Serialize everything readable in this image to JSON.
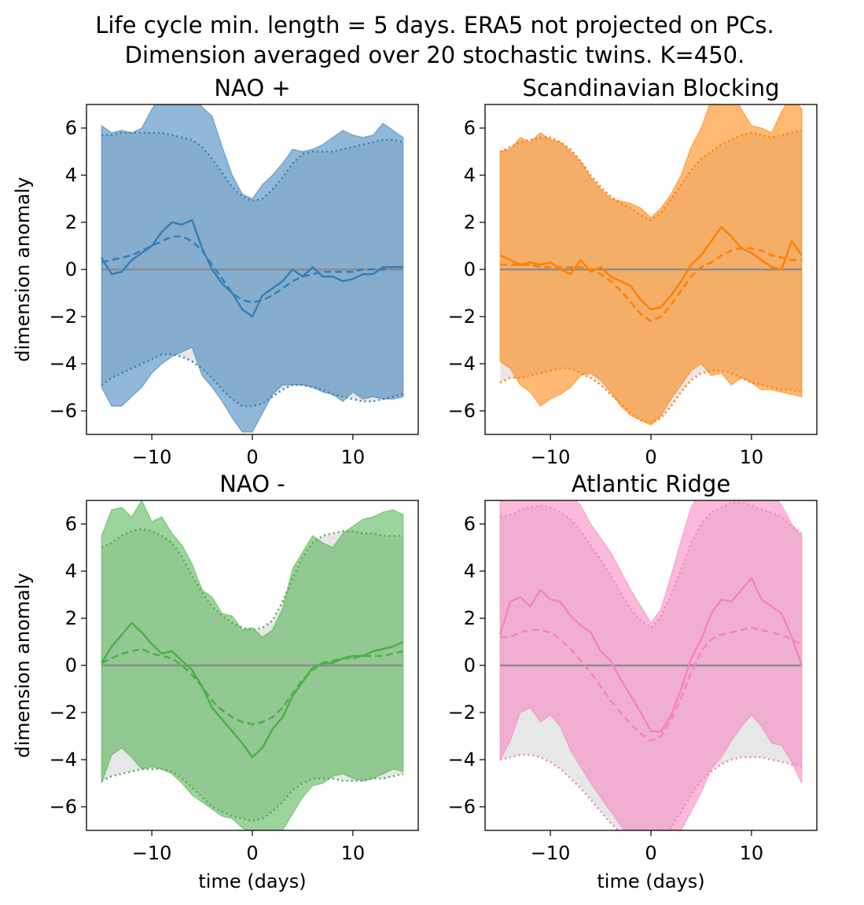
{
  "figure": {
    "suptitle_lines": [
      "Life cycle min. length = 5 days. ERA5 not projected on PCs.",
      "Dimension averaged over 20 stochastic twins. K=450."
    ]
  },
  "chart_data": [
    {
      "type": "line",
      "title": "NAO +",
      "color": "#377eb8",
      "xlabel": "",
      "ylabel": "dimension anomaly",
      "xlim": [
        -16.5,
        16.5
      ],
      "ylim": [
        -7,
        7
      ],
      "xticks": [
        -10,
        0,
        10
      ],
      "yticks": [
        -6,
        -4,
        -2,
        0,
        2,
        4,
        6
      ],
      "x": [
        -15,
        -14,
        -13,
        -12,
        -11,
        -10,
        -9,
        -8,
        -7,
        -6,
        -5,
        -4,
        -3,
        -2,
        -1,
        0,
        1,
        2,
        3,
        4,
        5,
        6,
        7,
        8,
        9,
        10,
        11,
        12,
        13,
        14,
        15
      ],
      "series": [
        {
          "role": "solid",
          "values": [
            0.5,
            -0.2,
            -0.1,
            0.4,
            0.7,
            1.0,
            1.6,
            2.0,
            1.9,
            2.1,
            0.9,
            0.0,
            -0.6,
            -1.0,
            -1.7,
            -2.0,
            -1.1,
            -0.8,
            -0.5,
            0.0,
            -0.3,
            0.1,
            -0.3,
            -0.3,
            -0.5,
            -0.4,
            -0.2,
            -0.2,
            0.1,
            0.1,
            0.1
          ]
        },
        {
          "role": "dashed",
          "values": [
            0.3,
            0.4,
            0.5,
            0.6,
            0.8,
            1.0,
            1.2,
            1.4,
            1.4,
            1.2,
            0.8,
            0.2,
            -0.4,
            -1.0,
            -1.3,
            -1.4,
            -1.3,
            -1.1,
            -0.8,
            -0.5,
            -0.3,
            -0.2,
            -0.1,
            -0.1,
            -0.1,
            -0.1,
            0.0,
            0.0,
            0.0,
            0.1,
            0.1
          ]
        },
        {
          "role": "ensemble_upper",
          "values": [
            6.1,
            5.8,
            5.9,
            5.8,
            6.0,
            6.8,
            7.4,
            7.3,
            7.0,
            7.4,
            6.9,
            6.5,
            5.2,
            4.0,
            3.2,
            3.0,
            3.6,
            4.0,
            4.5,
            5.1,
            5.0,
            5.1,
            5.3,
            5.6,
            5.9,
            5.7,
            5.6,
            5.7,
            6.2,
            5.9,
            5.6
          ]
        },
        {
          "role": "ensemble_lower",
          "values": [
            -5.0,
            -5.8,
            -5.8,
            -5.4,
            -5.0,
            -4.4,
            -4.0,
            -3.7,
            -3.5,
            -3.3,
            -4.5,
            -5.0,
            -5.6,
            -6.3,
            -6.9,
            -6.9,
            -6.1,
            -5.3,
            -4.9,
            -4.9,
            -4.9,
            -5.0,
            -5.2,
            -5.3,
            -5.6,
            -5.2,
            -5.5,
            -5.4,
            -5.5,
            -5.5,
            -5.4
          ]
        },
        {
          "role": "era5_upper",
          "values": [
            5.7,
            5.7,
            5.8,
            5.8,
            5.8,
            5.8,
            5.8,
            5.7,
            5.6,
            5.5,
            5.2,
            4.7,
            4.1,
            3.5,
            3.1,
            2.9,
            3.0,
            3.4,
            3.9,
            4.5,
            4.9,
            5.0,
            5.0,
            5.0,
            5.1,
            5.2,
            5.3,
            5.4,
            5.5,
            5.5,
            5.4
          ]
        },
        {
          "role": "era5_lower",
          "values": [
            -4.9,
            -4.6,
            -4.4,
            -4.2,
            -4.0,
            -3.8,
            -3.6,
            -3.6,
            -3.7,
            -3.9,
            -4.2,
            -4.6,
            -5.1,
            -5.5,
            -5.8,
            -5.8,
            -5.7,
            -5.4,
            -5.1,
            -4.9,
            -4.9,
            -5.0,
            -5.1,
            -5.3,
            -5.4,
            -5.5,
            -5.6,
            -5.6,
            -5.5,
            -5.4,
            -5.3
          ]
        }
      ]
    },
    {
      "type": "line",
      "title": "Scandinavian Blocking",
      "color": "#ff7f00",
      "xlabel": "",
      "ylabel": "",
      "xlim": [
        -16.5,
        16.5
      ],
      "ylim": [
        -7,
        7
      ],
      "xticks": [
        -10,
        0,
        10
      ],
      "yticks": [
        -6,
        -4,
        -2,
        0,
        2,
        4,
        6
      ],
      "x": [
        -15,
        -14,
        -13,
        -12,
        -11,
        -10,
        -9,
        -8,
        -7,
        -6,
        -5,
        -4,
        -3,
        -2,
        -1,
        0,
        1,
        2,
        3,
        4,
        5,
        6,
        7,
        8,
        9,
        10,
        11,
        12,
        13,
        14,
        15
      ],
      "series": [
        {
          "role": "solid",
          "values": [
            0.6,
            0.4,
            0.2,
            0.3,
            0.2,
            0.3,
            0.0,
            -0.2,
            0.4,
            -0.1,
            0.1,
            -0.3,
            -0.5,
            -0.7,
            -1.3,
            -1.7,
            -1.6,
            -1.1,
            -0.5,
            0.2,
            0.6,
            1.2,
            1.8,
            1.4,
            0.9,
            0.7,
            0.4,
            0.1,
            0.0,
            1.2,
            0.6
          ]
        },
        {
          "role": "dashed",
          "values": [
            0.2,
            0.2,
            0.2,
            0.2,
            0.1,
            0.1,
            0.1,
            0.1,
            0.1,
            0.0,
            -0.2,
            -0.5,
            -0.9,
            -1.4,
            -1.9,
            -2.2,
            -2.0,
            -1.5,
            -0.9,
            -0.3,
            0.1,
            0.3,
            0.6,
            0.8,
            0.9,
            0.9,
            0.8,
            0.6,
            0.5,
            0.4,
            0.4
          ]
        },
        {
          "role": "ensemble_upper",
          "values": [
            5.0,
            5.1,
            5.6,
            5.4,
            5.8,
            5.5,
            5.4,
            5.0,
            4.6,
            3.9,
            3.4,
            3.0,
            2.9,
            2.8,
            2.6,
            2.2,
            2.6,
            3.2,
            4.0,
            5.2,
            6.0,
            7.2,
            7.4,
            7.6,
            6.8,
            6.1,
            6.0,
            5.8,
            6.7,
            7.4,
            6.8
          ]
        },
        {
          "role": "ensemble_lower",
          "values": [
            -3.9,
            -4.2,
            -4.9,
            -5.2,
            -5.8,
            -5.5,
            -5.3,
            -5.0,
            -4.5,
            -4.4,
            -4.7,
            -5.2,
            -5.8,
            -6.2,
            -6.4,
            -6.6,
            -6.2,
            -5.5,
            -4.9,
            -4.3,
            -4.0,
            -4.5,
            -4.4,
            -4.9,
            -4.6,
            -4.8,
            -5.1,
            -5.1,
            -5.2,
            -5.3,
            -5.4
          ]
        },
        {
          "role": "era5_upper",
          "values": [
            5.0,
            5.2,
            5.4,
            5.5,
            5.6,
            5.6,
            5.4,
            5.1,
            4.6,
            4.0,
            3.5,
            3.1,
            2.8,
            2.6,
            2.3,
            2.1,
            2.4,
            3.0,
            3.6,
            4.2,
            4.7,
            5.0,
            5.3,
            5.5,
            5.7,
            5.8,
            5.7,
            5.6,
            5.7,
            5.8,
            5.9
          ]
        },
        {
          "role": "era5_lower",
          "values": [
            -4.8,
            -4.6,
            -4.6,
            -4.5,
            -4.4,
            -4.3,
            -4.2,
            -4.2,
            -4.4,
            -4.6,
            -4.9,
            -5.3,
            -5.7,
            -6.1,
            -6.4,
            -6.5,
            -6.3,
            -5.8,
            -5.2,
            -4.7,
            -4.4,
            -4.3,
            -4.3,
            -4.4,
            -4.6,
            -4.8,
            -4.9,
            -5.0,
            -5.1,
            -5.1,
            -5.2
          ]
        }
      ]
    },
    {
      "type": "line",
      "title": "NAO -",
      "color": "#4daf4a",
      "xlabel": "time (days)",
      "ylabel": "dimension anomaly",
      "xlim": [
        -16.5,
        16.5
      ],
      "ylim": [
        -7,
        7
      ],
      "xticks": [
        -10,
        0,
        10
      ],
      "yticks": [
        -6,
        -4,
        -2,
        0,
        2,
        4,
        6
      ],
      "x": [
        -15,
        -14,
        -13,
        -12,
        -11,
        -10,
        -9,
        -8,
        -7,
        -6,
        -5,
        -4,
        -3,
        -2,
        -1,
        0,
        1,
        2,
        3,
        4,
        5,
        6,
        7,
        8,
        9,
        10,
        11,
        12,
        13,
        14,
        15
      ],
      "series": [
        {
          "role": "solid",
          "values": [
            0.1,
            0.8,
            1.3,
            1.8,
            1.4,
            0.9,
            0.5,
            0.6,
            0.2,
            -0.2,
            -0.9,
            -1.8,
            -2.3,
            -2.8,
            -3.3,
            -3.9,
            -3.5,
            -2.7,
            -2.2,
            -1.3,
            -0.7,
            -0.1,
            0.1,
            0.1,
            0.3,
            0.4,
            0.4,
            0.6,
            0.7,
            0.8,
            1.0
          ]
        },
        {
          "role": "dashed",
          "values": [
            0.1,
            0.3,
            0.5,
            0.6,
            0.7,
            0.5,
            0.4,
            0.3,
            0.0,
            -0.4,
            -0.9,
            -1.5,
            -1.9,
            -2.2,
            -2.4,
            -2.5,
            -2.4,
            -2.2,
            -1.8,
            -1.2,
            -0.6,
            -0.2,
            0.1,
            0.2,
            0.3,
            0.3,
            0.4,
            0.4,
            0.4,
            0.5,
            0.6
          ]
        },
        {
          "role": "ensemble_upper",
          "values": [
            5.5,
            6.6,
            6.7,
            6.3,
            7.0,
            6.1,
            6.3,
            5.6,
            5.1,
            4.3,
            3.2,
            2.9,
            2.2,
            2.1,
            1.5,
            1.6,
            1.2,
            1.5,
            2.4,
            4.1,
            4.8,
            5.5,
            5.2,
            5.0,
            5.6,
            5.9,
            6.2,
            6.3,
            6.5,
            6.6,
            6.4
          ]
        },
        {
          "role": "ensemble_lower",
          "values": [
            -5.0,
            -3.8,
            -3.5,
            -3.9,
            -4.4,
            -4.3,
            -4.4,
            -4.6,
            -5.0,
            -5.5,
            -5.8,
            -6.1,
            -6.4,
            -6.5,
            -6.9,
            -7.1,
            -7.3,
            -7.2,
            -7.0,
            -6.3,
            -5.6,
            -5.1,
            -5.0,
            -4.7,
            -4.6,
            -4.8,
            -4.9,
            -4.8,
            -4.6,
            -4.4,
            -4.5
          ]
        },
        {
          "role": "era5_upper",
          "values": [
            5.0,
            5.2,
            5.5,
            5.7,
            5.8,
            5.7,
            5.5,
            5.2,
            4.6,
            3.8,
            3.1,
            2.5,
            2.1,
            1.8,
            1.6,
            1.5,
            1.6,
            1.9,
            2.7,
            3.7,
            4.6,
            5.2,
            5.5,
            5.6,
            5.7,
            5.7,
            5.6,
            5.6,
            5.5,
            5.5,
            5.5
          ]
        },
        {
          "role": "era5_lower",
          "values": [
            -4.9,
            -4.7,
            -4.6,
            -4.5,
            -4.4,
            -4.4,
            -4.4,
            -4.5,
            -4.8,
            -5.2,
            -5.6,
            -6.0,
            -6.2,
            -6.4,
            -6.5,
            -6.6,
            -6.5,
            -6.2,
            -5.8,
            -5.3,
            -5.0,
            -4.8,
            -4.8,
            -4.8,
            -4.9,
            -4.9,
            -4.9,
            -4.8,
            -4.8,
            -4.7,
            -4.6
          ]
        }
      ]
    },
    {
      "type": "line",
      "title": "Atlantic Ridge",
      "color": "#f781bf",
      "xlabel": "time (days)",
      "ylabel": "",
      "xlim": [
        -16.5,
        16.5
      ],
      "ylim": [
        -7,
        7
      ],
      "xticks": [
        -10,
        0,
        10
      ],
      "yticks": [
        -6,
        -4,
        -2,
        0,
        2,
        4,
        6
      ],
      "x": [
        -15,
        -14,
        -13,
        -12,
        -11,
        -10,
        -9,
        -8,
        -7,
        -6,
        -5,
        -4,
        -3,
        -2,
        -1,
        0,
        1,
        2,
        3,
        4,
        5,
        6,
        7,
        8,
        9,
        10,
        11,
        12,
        13,
        14,
        15
      ],
      "series": [
        {
          "role": "solid",
          "values": [
            1.3,
            2.7,
            2.9,
            2.5,
            3.2,
            2.8,
            2.7,
            2.1,
            1.7,
            1.4,
            0.6,
            0.2,
            -0.6,
            -1.3,
            -2.0,
            -2.8,
            -2.8,
            -2.1,
            -1.0,
            0.3,
            1.1,
            2.2,
            2.8,
            2.7,
            3.2,
            3.7,
            2.8,
            2.5,
            2.2,
            1.2,
            0.0
          ]
        },
        {
          "role": "dashed",
          "values": [
            1.2,
            1.2,
            1.4,
            1.5,
            1.5,
            1.4,
            1.1,
            0.7,
            0.2,
            -0.3,
            -0.9,
            -1.5,
            -2.0,
            -2.5,
            -2.9,
            -3.2,
            -3.0,
            -2.3,
            -1.4,
            -0.3,
            0.6,
            1.1,
            1.3,
            1.4,
            1.5,
            1.6,
            1.5,
            1.4,
            1.3,
            1.1,
            0.9
          ]
        },
        {
          "role": "ensemble_upper",
          "values": [
            7.0,
            7.2,
            7.4,
            7.8,
            8.0,
            7.8,
            7.4,
            7.2,
            6.8,
            6.0,
            5.4,
            4.8,
            4.0,
            3.2,
            2.5,
            1.8,
            2.4,
            3.8,
            5.3,
            6.7,
            7.5,
            7.8,
            7.6,
            7.4,
            7.0,
            7.6,
            7.0,
            7.3,
            6.8,
            6.0,
            5.5
          ]
        },
        {
          "role": "ensemble_lower",
          "values": [
            -4.0,
            -3.2,
            -2.0,
            -1.8,
            -2.4,
            -2.1,
            -2.6,
            -3.6,
            -4.3,
            -5.0,
            -5.6,
            -6.2,
            -6.8,
            -7.4,
            -7.8,
            -8.0,
            -7.8,
            -7.4,
            -7.0,
            -6.2,
            -5.4,
            -4.4,
            -3.9,
            -3.2,
            -2.6,
            -2.1,
            -2.6,
            -3.3,
            -3.4,
            -4.1,
            -5.0
          ]
        },
        {
          "role": "era5_upper",
          "values": [
            6.3,
            6.4,
            6.6,
            6.7,
            6.8,
            6.7,
            6.5,
            6.2,
            5.7,
            5.1,
            4.5,
            3.8,
            3.1,
            2.4,
            1.9,
            1.6,
            2.1,
            3.0,
            4.1,
            5.2,
            6.0,
            6.5,
            6.7,
            6.9,
            6.9,
            6.8,
            6.6,
            6.5,
            6.3,
            5.9,
            5.6
          ]
        },
        {
          "role": "era5_lower",
          "values": [
            -4.0,
            -3.9,
            -3.8,
            -3.8,
            -3.9,
            -4.1,
            -4.4,
            -4.8,
            -5.2,
            -5.7,
            -6.2,
            -6.7,
            -7.1,
            -7.4,
            -7.6,
            -7.7,
            -7.4,
            -6.9,
            -6.2,
            -5.5,
            -4.9,
            -4.5,
            -4.2,
            -4.0,
            -3.9,
            -3.9,
            -3.9,
            -4.0,
            -4.1,
            -4.2,
            -4.3
          ]
        }
      ]
    }
  ]
}
